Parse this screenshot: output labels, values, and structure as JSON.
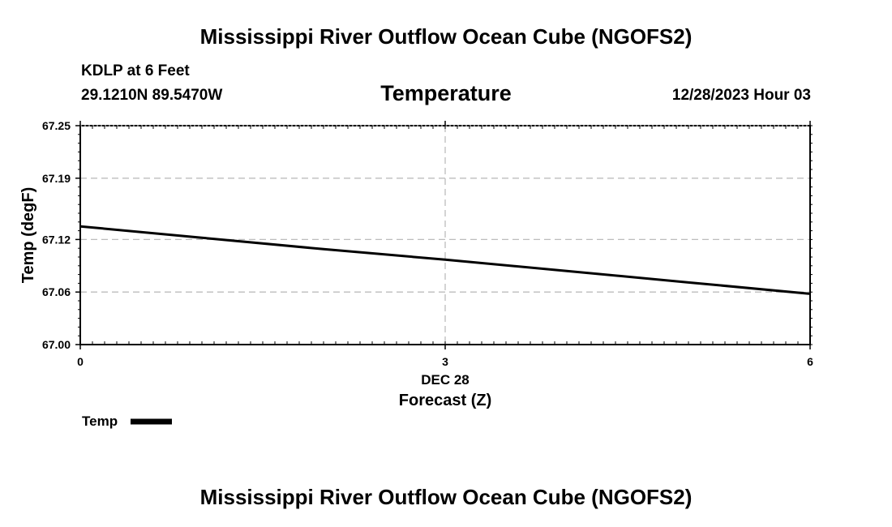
{
  "header": {
    "title": "Mississippi River Outflow Ocean Cube (NGOFS2)",
    "station": "KDLP at 6 Feet",
    "coordinates": "29.1210N  89.5470W",
    "variable_title": "Temperature",
    "run_time": "12/28/2023 Hour 03"
  },
  "footer": {
    "title": "Mississippi River Outflow Ocean Cube (NGOFS2)"
  },
  "chart_data": {
    "type": "line",
    "title": "Temperature",
    "xlabel": "Forecast (Z)",
    "x_date_label": "DEC 28",
    "ylabel": "Temp (degF)",
    "xlim": [
      0,
      6
    ],
    "ylim": [
      67.0,
      67.25
    ],
    "x_ticks": [
      0,
      3,
      6
    ],
    "x_tick_labels": [
      "0",
      "3",
      "6"
    ],
    "y_ticks": [
      67.0,
      67.06,
      67.12,
      67.19,
      67.25
    ],
    "y_tick_labels": [
      "67.00",
      "67.06",
      "67.12",
      "67.19",
      "67.25"
    ],
    "grid": true,
    "legend_position": "bottom-left",
    "series": [
      {
        "name": "Temp",
        "color": "#000000",
        "x": [
          0,
          1,
          2,
          3,
          4,
          5,
          6
        ],
        "y": [
          67.135,
          67.122,
          67.109,
          67.097,
          67.084,
          67.071,
          67.058
        ]
      }
    ]
  }
}
